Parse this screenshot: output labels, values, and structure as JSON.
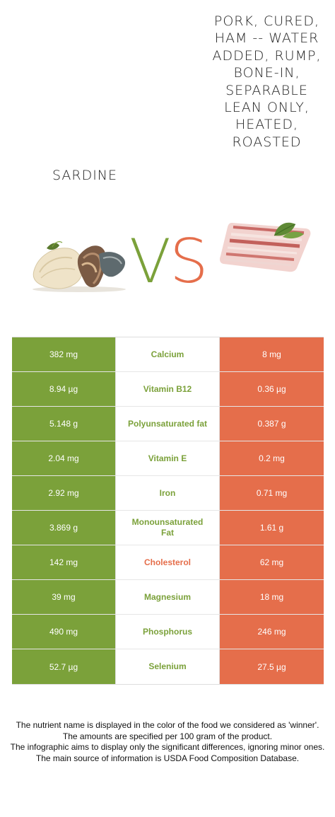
{
  "left_food": {
    "name": "Sardine",
    "color": "#7ba13a",
    "image": "sardine-image"
  },
  "right_food": {
    "name": "Pork, cured, ham -- water added, rump, bone-in, separable lean only, heated, roasted",
    "color": "#e56e4b",
    "image": "bacon-image"
  },
  "vs": {
    "v": "V",
    "s": "S"
  },
  "nutrients": [
    {
      "name": "Calcium",
      "left": "382 mg",
      "right": "8 mg",
      "winner": "left"
    },
    {
      "name": "Vitamin B12",
      "left": "8.94 µg",
      "right": "0.36 µg",
      "winner": "left"
    },
    {
      "name": "Polyunsaturated fat",
      "left": "5.148 g",
      "right": "0.387 g",
      "winner": "left"
    },
    {
      "name": "Vitamin E",
      "left": "2.04 mg",
      "right": "0.2 mg",
      "winner": "left"
    },
    {
      "name": "Iron",
      "left": "2.92 mg",
      "right": "0.71 mg",
      "winner": "left"
    },
    {
      "name": "Monounsaturated Fat",
      "left": "3.869 g",
      "right": "1.61 g",
      "winner": "left"
    },
    {
      "name": "Cholesterol",
      "left": "142 mg",
      "right": "62 mg",
      "winner": "right"
    },
    {
      "name": "Magnesium",
      "left": "39 mg",
      "right": "18 mg",
      "winner": "left"
    },
    {
      "name": "Phosphorus",
      "left": "490 mg",
      "right": "246 mg",
      "winner": "left"
    },
    {
      "name": "Selenium",
      "left": "52.7 µg",
      "right": "27.5 µg",
      "winner": "left"
    }
  ],
  "footer": [
    "The nutrient name is displayed in the color of the food we considered as 'winner'.",
    "The amounts are specified per 100 gram of the product.",
    "The infographic aims to display only the significant differences, ignoring minor ones.",
    "The main source of information is USDA Food Composition Database."
  ]
}
